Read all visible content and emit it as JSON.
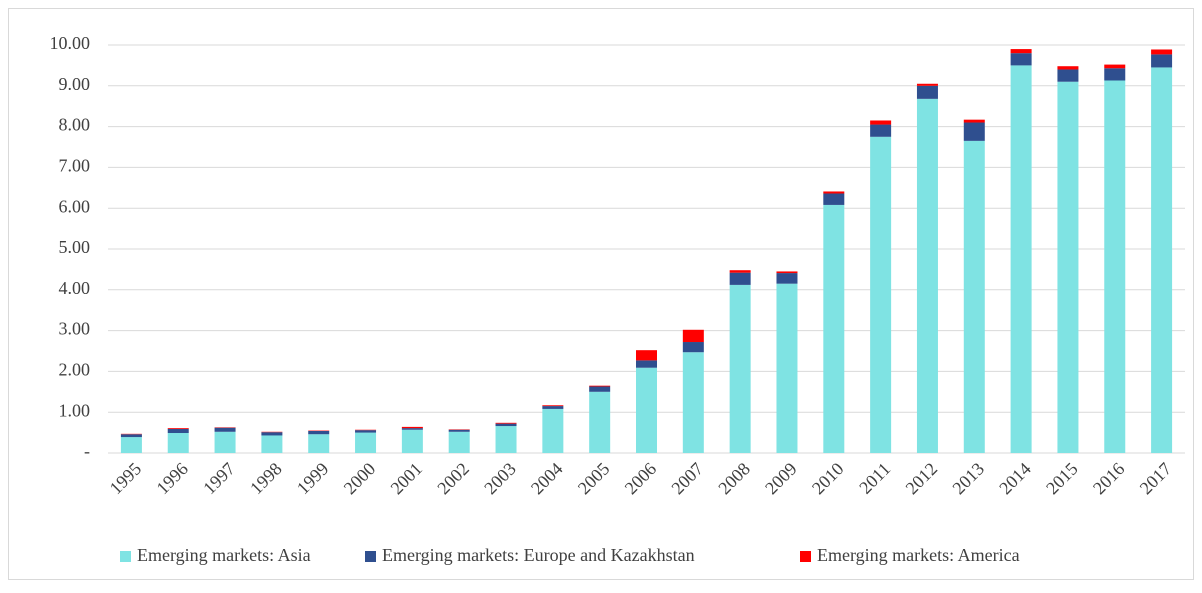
{
  "chart_data": {
    "type": "stacked-bar",
    "categories": [
      "1995",
      "1996",
      "1997",
      "1998",
      "1999",
      "2000",
      "2001",
      "2002",
      "2003",
      "2004",
      "2005",
      "2006",
      "2007",
      "2008",
      "2009",
      "2010",
      "2011",
      "2012",
      "2013",
      "2014",
      "2015",
      "2016",
      "2017"
    ],
    "series": [
      {
        "name": "Emerging markets: Asia",
        "color": "#7fe3e3",
        "values": [
          0.39,
          0.49,
          0.52,
          0.43,
          0.46,
          0.5,
          0.57,
          0.52,
          0.66,
          1.08,
          1.5,
          2.09,
          2.47,
          4.12,
          4.15,
          6.08,
          7.75,
          8.68,
          7.65,
          9.5,
          9.1,
          9.13,
          9.45
        ]
      },
      {
        "name": "Emerging markets: Europe and Kazakhstan",
        "color": "#2f4f8f",
        "values": [
          0.07,
          0.1,
          0.1,
          0.08,
          0.08,
          0.06,
          0.04,
          0.05,
          0.06,
          0.07,
          0.13,
          0.18,
          0.25,
          0.3,
          0.26,
          0.28,
          0.3,
          0.32,
          0.45,
          0.3,
          0.3,
          0.3,
          0.32
        ]
      },
      {
        "name": "Emerging markets: America",
        "color": "#ff0000",
        "values": [
          0.01,
          0.02,
          0.01,
          0.01,
          0.01,
          0.01,
          0.03,
          0.01,
          0.02,
          0.02,
          0.02,
          0.25,
          0.3,
          0.06,
          0.04,
          0.05,
          0.1,
          0.05,
          0.07,
          0.1,
          0.08,
          0.09,
          0.12
        ]
      }
    ],
    "ylim": [
      0,
      10
    ],
    "yticks": [
      {
        "value": 0,
        "label": "-"
      },
      {
        "value": 1,
        "label": "1.00"
      },
      {
        "value": 2,
        "label": "2.00"
      },
      {
        "value": 3,
        "label": "3.00"
      },
      {
        "value": 4,
        "label": "4.00"
      },
      {
        "value": 5,
        "label": "5.00"
      },
      {
        "value": 6,
        "label": "6.00"
      },
      {
        "value": 7,
        "label": "7.00"
      },
      {
        "value": 8,
        "label": "8.00"
      },
      {
        "value": 9,
        "label": "9.00"
      },
      {
        "value": 10,
        "label": "10.00"
      }
    ],
    "grid": true,
    "legend": "bottom"
  }
}
